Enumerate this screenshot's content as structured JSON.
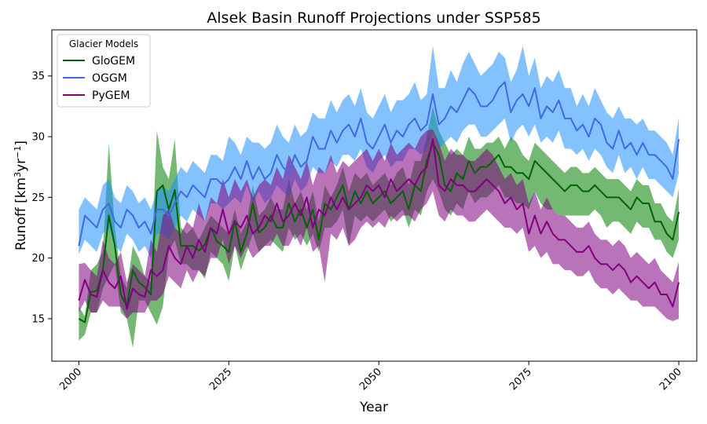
{
  "chart_data": {
    "type": "line",
    "title": "Alsek Basin Runoff Projections under SSP585",
    "xlabel": "Year",
    "ylabel_main": "Runoff [km",
    "ylabel_sup1": "3",
    "ylabel_mid": "yr",
    "ylabel_sup2": "−1",
    "ylabel_end": "]",
    "xlim": [
      1995.5,
      2103
    ],
    "ylim": [
      11.5,
      38.8
    ],
    "xticks": [
      2000,
      2025,
      2050,
      2075,
      2100
    ],
    "yticks": [
      15,
      20,
      25,
      30,
      35
    ],
    "grid": false,
    "legend": {
      "title": "Glacier Models",
      "placement": "top-left",
      "entries": [
        "GloGEM",
        "OGGM",
        "PyGEM"
      ]
    },
    "x_start": 2000,
    "series": [
      {
        "name": "GloGEM",
        "color": "#006400",
        "band_color": "#008000",
        "band_opacity": 0.55,
        "mean": [
          15.0,
          14.7,
          17.2,
          17.3,
          19.0,
          23.5,
          21.0,
          17.0,
          16.0,
          19.0,
          18.0,
          17.6,
          17.0,
          25.5,
          26.0,
          24.0,
          25.6,
          21.0,
          21.0,
          21.0,
          20.6,
          21.1,
          22.5,
          21.4,
          21.0,
          20.5,
          23.1,
          20.5,
          22.0,
          24.5,
          22.1,
          22.5,
          23.5,
          22.5,
          22.5,
          24.5,
          23.0,
          24.0,
          22.5,
          24.0,
          21.5,
          24.5,
          24.0,
          25.0,
          26.0,
          24.0,
          25.5,
          24.5,
          25.5,
          24.5,
          25.0,
          25.5,
          24.5,
          25.0,
          25.5,
          24.0,
          26.0,
          25.5,
          28.0,
          29.5,
          28.5,
          26.0,
          25.5,
          27.0,
          26.5,
          28.0,
          27.0,
          27.5,
          27.5,
          28.0,
          28.5,
          27.5,
          27.5,
          27.0,
          27.0,
          26.5,
          28.0,
          27.5,
          27.0,
          26.5,
          26.0,
          25.5,
          26.0,
          26.0,
          25.5,
          25.5,
          26.0,
          25.5,
          25.0,
          25.0,
          25.0,
          24.5,
          24.0,
          25.0,
          24.5,
          24.5,
          23.0,
          23.0,
          22.0,
          21.5,
          23.8
        ],
        "upper": [
          16.0,
          15.2,
          19.0,
          19.5,
          20.5,
          29.5,
          22.5,
          18.5,
          17.5,
          21.0,
          20.0,
          18.5,
          18.0,
          30.5,
          27.5,
          26.5,
          29.8,
          22.5,
          22.0,
          22.5,
          21.5,
          22.5,
          23.5,
          23.0,
          22.5,
          22.0,
          24.0,
          22.0,
          23.0,
          26.0,
          23.5,
          24.0,
          25.0,
          24.0,
          24.0,
          26.5,
          24.5,
          25.5,
          24.0,
          25.5,
          23.0,
          26.0,
          25.0,
          26.0,
          27.5,
          25.5,
          27.0,
          26.5,
          27.0,
          26.0,
          26.5,
          27.0,
          26.0,
          27.0,
          27.5,
          26.0,
          28.0,
          28.0,
          30.0,
          32.5,
          30.5,
          29.5,
          28.5,
          29.0,
          28.5,
          30.0,
          29.0,
          29.0,
          29.5,
          29.5,
          30.0,
          29.0,
          30.0,
          29.5,
          28.5,
          28.0,
          29.5,
          29.0,
          28.5,
          28.0,
          27.5,
          27.0,
          27.5,
          27.5,
          27.0,
          27.0,
          27.5,
          27.0,
          26.5,
          26.5,
          26.5,
          26.0,
          25.5,
          26.5,
          26.0,
          26.0,
          24.5,
          24.5,
          23.5,
          23.0,
          25.7
        ],
        "lower": [
          13.2,
          13.7,
          15.5,
          15.5,
          17.5,
          18.5,
          19.5,
          15.5,
          15.0,
          12.6,
          16.5,
          16.5,
          15.5,
          14.5,
          16.0,
          20.5,
          21.5,
          19.5,
          19.5,
          19.0,
          19.0,
          18.3,
          20.5,
          20.0,
          19.5,
          18.1,
          21.0,
          19.0,
          20.5,
          22.0,
          20.5,
          21.0,
          21.5,
          21.0,
          20.5,
          22.5,
          21.5,
          22.0,
          21.0,
          22.0,
          20.5,
          22.5,
          22.5,
          23.0,
          24.0,
          21.0,
          23.5,
          23.0,
          23.5,
          23.0,
          23.5,
          24.0,
          23.0,
          23.5,
          24.0,
          22.5,
          24.0,
          23.5,
          25.5,
          26.5,
          25.5,
          24.0,
          23.5,
          24.5,
          24.0,
          25.5,
          24.5,
          25.0,
          25.0,
          25.5,
          26.0,
          25.0,
          25.0,
          24.5,
          24.5,
          24.0,
          25.5,
          24.5,
          24.0,
          24.0,
          23.5,
          23.5,
          23.5,
          23.5,
          23.5,
          23.5,
          24.0,
          23.5,
          22.5,
          23.0,
          23.0,
          22.5,
          22.0,
          23.0,
          22.5,
          22.5,
          21.5,
          21.5,
          20.5,
          20.0,
          21.5
        ]
      },
      {
        "name": "OGGM",
        "color": "#4169e1",
        "band_color": "#1e90ff",
        "band_opacity": 0.55,
        "mean": [
          21.0,
          23.5,
          23.0,
          22.5,
          24.0,
          24.5,
          23.0,
          22.5,
          24.0,
          23.5,
          22.5,
          23.0,
          22.0,
          24.0,
          24.0,
          23.5,
          24.5,
          25.5,
          25.0,
          26.0,
          25.5,
          25.0,
          26.5,
          26.5,
          26.0,
          26.5,
          27.5,
          26.5,
          28.0,
          26.5,
          27.5,
          26.5,
          27.0,
          28.5,
          27.5,
          27.0,
          28.5,
          27.5,
          28.0,
          30.0,
          29.0,
          29.0,
          30.5,
          29.5,
          30.5,
          31.0,
          30.0,
          31.5,
          29.5,
          29.0,
          30.0,
          31.0,
          29.5,
          30.5,
          30.0,
          31.0,
          31.5,
          30.5,
          31.0,
          33.5,
          31.0,
          31.5,
          32.5,
          32.0,
          33.0,
          34.0,
          33.5,
          32.5,
          32.5,
          33.0,
          34.0,
          34.5,
          32.0,
          33.0,
          33.5,
          32.5,
          34.0,
          31.5,
          32.5,
          32.0,
          33.0,
          31.5,
          31.5,
          30.5,
          31.0,
          30.0,
          31.5,
          31.0,
          29.5,
          29.0,
          30.5,
          29.0,
          29.5,
          28.5,
          29.5,
          28.5,
          28.5,
          28.0,
          27.5,
          26.5,
          29.8
        ],
        "upper": [
          24.0,
          25.0,
          24.5,
          24.0,
          26.0,
          26.5,
          25.0,
          24.5,
          26.0,
          25.5,
          24.5,
          25.0,
          24.0,
          25.5,
          26.0,
          25.5,
          26.5,
          27.5,
          27.0,
          28.0,
          27.5,
          27.0,
          28.5,
          28.5,
          28.0,
          30.0,
          29.5,
          28.5,
          30.0,
          29.5,
          29.5,
          29.0,
          29.5,
          31.0,
          30.0,
          29.5,
          31.0,
          30.0,
          30.5,
          32.0,
          31.5,
          31.5,
          33.0,
          32.0,
          33.0,
          33.5,
          32.5,
          34.0,
          32.0,
          31.5,
          32.5,
          33.5,
          32.0,
          33.0,
          33.0,
          33.5,
          34.5,
          33.0,
          33.5,
          37.5,
          34.0,
          34.0,
          35.5,
          34.5,
          36.0,
          37.0,
          36.0,
          35.0,
          35.5,
          36.0,
          37.0,
          36.5,
          34.5,
          35.5,
          37.5,
          35.0,
          36.5,
          34.0,
          35.0,
          34.5,
          35.5,
          34.0,
          34.0,
          32.5,
          33.5,
          32.5,
          34.0,
          33.0,
          32.0,
          31.5,
          32.5,
          31.5,
          31.5,
          31.0,
          31.5,
          30.5,
          30.5,
          30.0,
          29.5,
          28.5,
          31.6
        ],
        "lower": [
          20.3,
          21.5,
          21.0,
          20.5,
          22.0,
          22.5,
          21.0,
          20.5,
          22.0,
          21.5,
          20.5,
          21.0,
          20.0,
          22.0,
          22.0,
          21.5,
          22.5,
          23.5,
          23.0,
          24.0,
          23.5,
          23.0,
          24.5,
          24.5,
          24.0,
          24.5,
          25.0,
          24.5,
          26.0,
          24.5,
          25.5,
          24.5,
          25.0,
          26.0,
          25.5,
          25.0,
          26.5,
          25.5,
          26.0,
          27.5,
          27.0,
          27.0,
          28.0,
          27.5,
          28.5,
          28.5,
          28.0,
          29.0,
          27.5,
          27.0,
          28.0,
          28.5,
          27.5,
          28.0,
          28.0,
          29.0,
          29.0,
          28.5,
          29.0,
          30.5,
          29.0,
          29.5,
          30.0,
          29.5,
          30.5,
          31.0,
          31.0,
          30.0,
          30.0,
          30.5,
          31.0,
          31.5,
          29.5,
          30.5,
          31.0,
          30.0,
          31.0,
          29.5,
          30.0,
          29.5,
          30.5,
          29.0,
          29.0,
          28.5,
          29.0,
          28.0,
          29.0,
          28.5,
          27.5,
          27.0,
          28.5,
          27.0,
          27.5,
          26.5,
          27.5,
          26.5,
          26.5,
          26.0,
          25.5,
          25.0,
          27.0
        ]
      },
      {
        "name": "PyGEM",
        "color": "#800080",
        "band_color": "#800080",
        "band_opacity": 0.55,
        "mean": [
          16.5,
          18.2,
          17.0,
          16.8,
          19.0,
          18.0,
          17.5,
          18.5,
          15.8,
          17.5,
          17.0,
          16.8,
          19.0,
          18.5,
          19.0,
          21.0,
          20.0,
          19.5,
          21.0,
          20.0,
          21.5,
          20.5,
          22.5,
          22.0,
          24.0,
          22.0,
          23.0,
          22.5,
          23.5,
          22.0,
          22.5,
          23.5,
          23.0,
          24.5,
          23.0,
          23.5,
          24.5,
          23.5,
          25.0,
          22.5,
          24.0,
          23.5,
          25.0,
          24.0,
          25.0,
          24.0,
          24.5,
          25.0,
          26.0,
          25.5,
          26.0,
          25.0,
          26.5,
          25.5,
          26.0,
          26.5,
          26.0,
          27.0,
          27.5,
          29.8,
          26.0,
          25.5,
          26.5,
          26.0,
          26.0,
          25.5,
          25.5,
          26.0,
          26.5,
          26.0,
          25.5,
          24.5,
          25.0,
          24.0,
          24.5,
          22.0,
          23.5,
          22.0,
          23.0,
          22.0,
          21.5,
          21.5,
          21.0,
          20.5,
          20.5,
          21.0,
          20.0,
          19.5,
          19.5,
          19.0,
          19.5,
          19.0,
          18.0,
          18.5,
          18.0,
          17.5,
          18.0,
          17.0,
          17.0,
          16.0,
          18.0
        ],
        "upper": [
          19.5,
          19.6,
          19.0,
          18.5,
          21.5,
          20.0,
          19.5,
          20.5,
          18.0,
          19.5,
          19.0,
          18.5,
          21.5,
          20.5,
          23.5,
          24.0,
          22.5,
          22.0,
          23.0,
          22.5,
          24.5,
          23.0,
          25.0,
          24.5,
          26.5,
          25.0,
          26.5,
          25.5,
          26.5,
          25.0,
          26.0,
          26.5,
          26.0,
          27.5,
          26.5,
          28.5,
          27.5,
          26.5,
          28.0,
          26.0,
          27.5,
          27.0,
          28.5,
          27.0,
          28.0,
          27.5,
          28.0,
          28.5,
          29.0,
          28.0,
          29.0,
          28.0,
          29.5,
          28.5,
          29.0,
          29.5,
          29.0,
          30.0,
          30.5,
          30.6,
          29.5,
          28.0,
          29.0,
          28.5,
          28.5,
          28.0,
          28.0,
          28.5,
          29.0,
          28.5,
          27.5,
          26.5,
          27.0,
          26.0,
          26.5,
          24.5,
          25.5,
          24.0,
          25.0,
          24.0,
          23.5,
          23.5,
          23.0,
          22.5,
          22.5,
          23.0,
          22.0,
          21.5,
          21.5,
          21.0,
          21.5,
          21.0,
          20.0,
          20.5,
          20.0,
          19.5,
          20.0,
          19.0,
          18.5,
          18.0,
          19.7
        ],
        "lower": [
          15.5,
          16.5,
          15.5,
          15.5,
          16.5,
          16.0,
          16.0,
          16.0,
          15.0,
          15.5,
          15.5,
          15.5,
          16.5,
          16.5,
          17.0,
          18.5,
          18.0,
          17.5,
          19.0,
          18.0,
          19.0,
          18.5,
          20.0,
          20.0,
          21.5,
          19.5,
          21.0,
          20.0,
          21.0,
          20.0,
          20.5,
          21.0,
          21.0,
          22.0,
          21.0,
          21.0,
          22.0,
          21.0,
          22.5,
          20.5,
          21.0,
          18.0,
          22.0,
          21.5,
          22.5,
          21.0,
          21.5,
          22.5,
          23.0,
          22.5,
          23.0,
          22.5,
          23.5,
          23.0,
          23.5,
          23.5,
          23.0,
          24.0,
          24.5,
          25.5,
          23.5,
          23.0,
          24.0,
          23.5,
          23.5,
          23.0,
          23.0,
          23.5,
          24.0,
          23.5,
          23.0,
          22.5,
          22.5,
          22.0,
          22.5,
          20.5,
          21.0,
          20.0,
          20.5,
          19.5,
          19.5,
          19.0,
          19.0,
          18.5,
          18.5,
          19.0,
          18.0,
          17.5,
          17.5,
          17.0,
          17.5,
          17.0,
          16.5,
          16.5,
          16.0,
          16.0,
          16.0,
          15.5,
          15.0,
          14.8,
          15.0
        ]
      }
    ]
  }
}
